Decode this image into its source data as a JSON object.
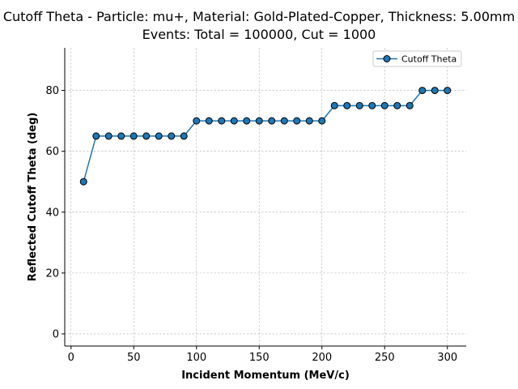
{
  "chart_data": {
    "type": "line",
    "title_line1": "Cutoff Theta - Particle: mu+, Material: Gold-Plated-Copper, Thickness: 5.00mm",
    "title_line2": "Events: Total = 100000, Cut = 1000",
    "xlabel": "Incident Momentum (MeV/c)",
    "ylabel": "Reflected Cutoff Theta (deg)",
    "xlim": [
      -5,
      315
    ],
    "ylim": [
      -4,
      94
    ],
    "xticks": [
      0,
      50,
      100,
      150,
      200,
      250,
      300
    ],
    "yticks": [
      0,
      20,
      40,
      60,
      80
    ],
    "grid": true,
    "legend_position": "top-right",
    "series": [
      {
        "name": "Cutoff Theta",
        "color": "#1f77b4",
        "marker": "circle",
        "x": [
          10,
          20,
          30,
          40,
          50,
          60,
          70,
          80,
          90,
          100,
          110,
          120,
          130,
          140,
          150,
          160,
          170,
          180,
          190,
          200,
          210,
          220,
          230,
          240,
          250,
          260,
          270,
          280,
          290,
          300
        ],
        "y": [
          50,
          65,
          65,
          65,
          65,
          65,
          65,
          65,
          65,
          70,
          70,
          70,
          70,
          70,
          70,
          70,
          70,
          70,
          70,
          70,
          75,
          75,
          75,
          75,
          75,
          75,
          75,
          80,
          80,
          80
        ]
      }
    ]
  }
}
